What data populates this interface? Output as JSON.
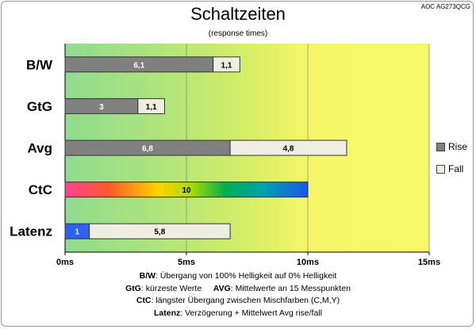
{
  "model": "AOC AG273QCG",
  "chart_data": {
    "type": "bar",
    "orientation": "horizontal",
    "stacked": true,
    "title": "Schaltzeiten",
    "subtitle": "(response times)",
    "categories": [
      "B/W",
      "GtG",
      "Avg",
      "CtC",
      "Latenz"
    ],
    "series": [
      {
        "name": "Rise",
        "color": "#808080",
        "values": [
          6.1,
          3,
          6.8,
          null,
          1
        ]
      },
      {
        "name": "Fall",
        "color": "#eeeee2",
        "values": [
          1.1,
          1.1,
          4.8,
          null,
          5.8
        ]
      }
    ],
    "ctc_value": 10,
    "value_labels": [
      [
        "6,1",
        "1,1"
      ],
      [
        "3",
        "1,1"
      ],
      [
        "6,8",
        "4,8"
      ],
      [
        "10"
      ],
      [
        "1",
        "5,8"
      ]
    ],
    "xlim": [
      0,
      15
    ],
    "xticks": [
      0,
      5,
      10,
      15
    ],
    "xtick_labels": [
      "0ms",
      "5ms",
      "10ms",
      "15ms"
    ],
    "legend_position": "right",
    "background_gradient": [
      "#8fdc8f",
      "#c8ec64",
      "#f8f868"
    ]
  },
  "legend": [
    {
      "name": "Rise",
      "color": "#808080"
    },
    {
      "name": "Fall",
      "color": "#eeeee2"
    }
  ],
  "notes": {
    "line1_key": "B/W",
    "line1_text": ":  Übergang von 100% Helligkeit auf 0% Helligkeit",
    "line2_key1": "GtG",
    "line2_text1": ": kürzeste  Werte",
    "line2_key2": "AVG",
    "line2_text2": ": Mittelwerte  an 15 Messpunkten",
    "line3_key": "CtC",
    "line3_text": ": längster Übergang  zwischen Mischfarben (C,M,Y)",
    "line4_key": "Latenz",
    "line4_text": ": Verzögerung  + Mittelwert Avg rise/fall"
  }
}
